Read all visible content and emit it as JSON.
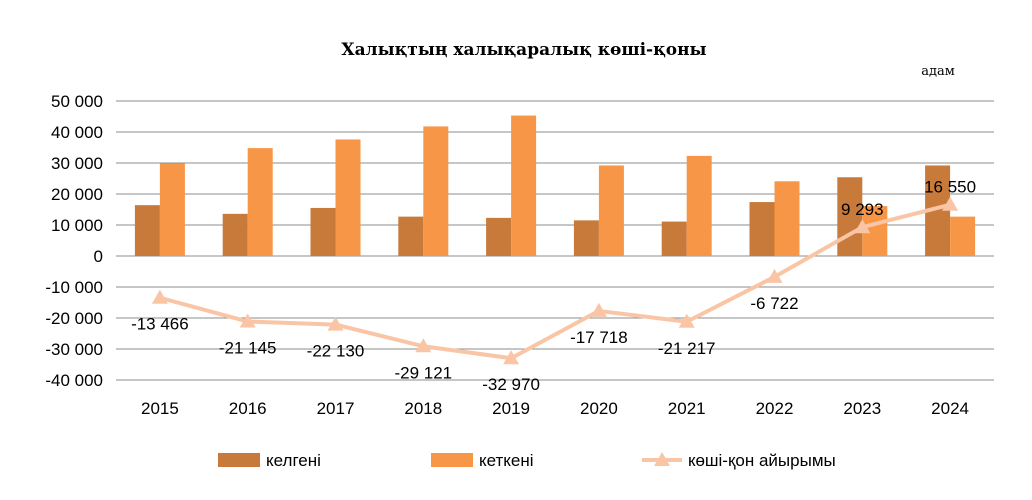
{
  "chart_data": {
    "type": "bar",
    "title": "Халықтың халықаралық көші-қоны",
    "unit": "адам",
    "categories": [
      "2015",
      "2016",
      "2017",
      "2018",
      "2019",
      "2020",
      "2021",
      "2022",
      "2023",
      "2024"
    ],
    "ylim": [
      -40000,
      50000
    ],
    "yticks": [
      50000,
      40000,
      30000,
      20000,
      10000,
      0,
      -10000,
      -20000,
      -30000,
      -40000
    ],
    "ytick_labels": [
      "50 000",
      "40 000",
      "30 000",
      "20 000",
      "10 000",
      "0",
      "-10 000",
      "-20 000",
      "-30 000",
      "-40 000"
    ],
    "grid": true,
    "legend_position": "bottom",
    "series": [
      {
        "name": "келгені",
        "kind": "bar",
        "color": "#c87a3b",
        "values": [
          16400,
          13600,
          15500,
          12700,
          12300,
          11500,
          11100,
          17400,
          25400,
          29200
        ]
      },
      {
        "name": "кеткені",
        "kind": "bar",
        "color": "#f79646",
        "values": [
          29900,
          34800,
          37600,
          41800,
          45300,
          29200,
          32300,
          24100,
          16100,
          12700
        ]
      },
      {
        "name": "көші-қон айырымы",
        "kind": "line",
        "color": "#f9c5a5",
        "values": [
          -13466,
          -21145,
          -22130,
          -29121,
          -32970,
          -17718,
          -21217,
          -6722,
          9293,
          16550
        ],
        "labels": [
          "-13 466",
          "-21 145",
          "-22 130",
          "-29 121",
          "-32 970",
          "-17 718",
          "-21 217",
          "-6 722",
          "9 293",
          "16 550"
        ]
      }
    ]
  }
}
